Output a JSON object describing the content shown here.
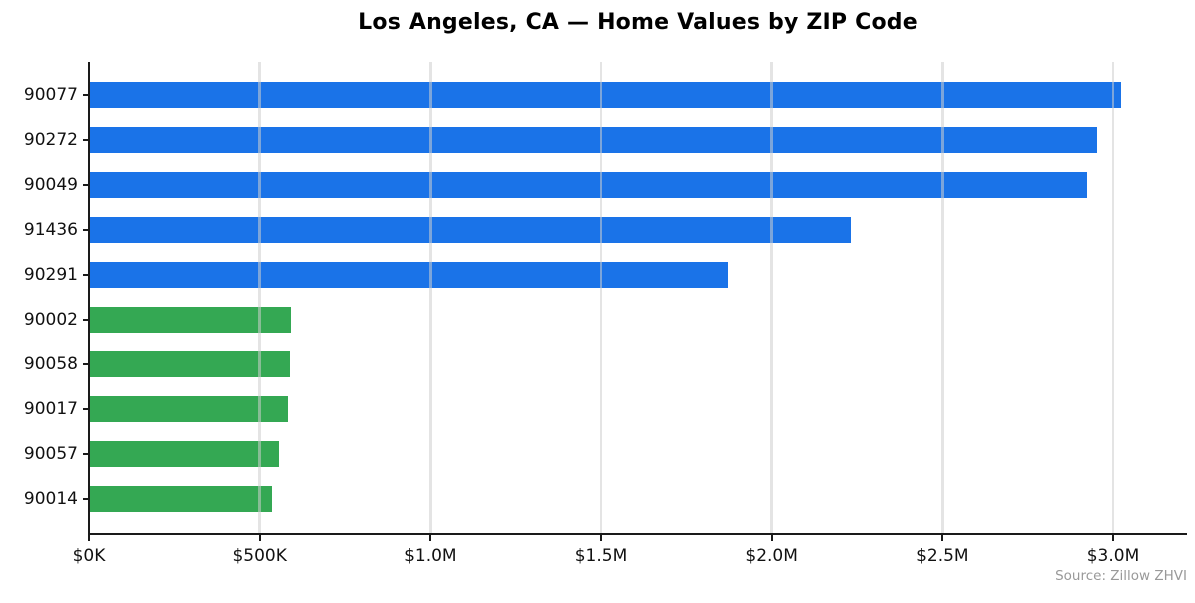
{
  "chart_data": {
    "type": "bar",
    "orientation": "horizontal",
    "title": "Los Angeles, CA — Home Values by ZIP Code",
    "source_note": "Source: Zillow ZHVI",
    "xlabel": "",
    "ylabel": "",
    "grid": true,
    "legend": "none",
    "xlim": [
      0,
      3220000
    ],
    "categories": [
      "90077",
      "90272",
      "90049",
      "91436",
      "90291",
      "90002",
      "90058",
      "90017",
      "90057",
      "90014"
    ],
    "values": [
      3020000,
      2950000,
      2920000,
      2230000,
      1870000,
      590000,
      586000,
      580000,
      553000,
      533000
    ],
    "bars": [
      {
        "label": "90077",
        "value": 3020000,
        "color": "#1a73e8",
        "group": "top-5-most-expensive"
      },
      {
        "label": "90272",
        "value": 2950000,
        "color": "#1a73e8",
        "group": "top-5-most-expensive"
      },
      {
        "label": "90049",
        "value": 2920000,
        "color": "#1a73e8",
        "group": "top-5-most-expensive"
      },
      {
        "label": "91436",
        "value": 2230000,
        "color": "#1a73e8",
        "group": "top-5-most-expensive"
      },
      {
        "label": "90291",
        "value": 1870000,
        "color": "#1a73e8",
        "group": "top-5-most-expensive"
      },
      {
        "label": "90002",
        "value": 590000,
        "color": "#34a853",
        "group": "bottom-5-least-expensive"
      },
      {
        "label": "90058",
        "value": 586000,
        "color": "#34a853",
        "group": "bottom-5-least-expensive"
      },
      {
        "label": "90017",
        "value": 580000,
        "color": "#34a853",
        "group": "bottom-5-least-expensive"
      },
      {
        "label": "90057",
        "value": 553000,
        "color": "#34a853",
        "group": "bottom-5-least-expensive"
      },
      {
        "label": "90014",
        "value": 533000,
        "color": "#34a853",
        "group": "bottom-5-least-expensive"
      }
    ],
    "x_ticks": [
      {
        "value": 0,
        "label": "$0K"
      },
      {
        "value": 500000,
        "label": "$500K"
      },
      {
        "value": 1000000,
        "label": "$1.0M"
      },
      {
        "value": 1500000,
        "label": "$1.5M"
      },
      {
        "value": 2000000,
        "label": "$2.0M"
      },
      {
        "value": 2500000,
        "label": "$2.5M"
      },
      {
        "value": 3000000,
        "label": "$3.0M"
      }
    ],
    "colors": {
      "top_bars": "#1a73e8",
      "bottom_bars": "#34a853",
      "axis": "#1a1a1a",
      "grid": "#dcdcdc",
      "tick_label": "#111111",
      "source_text": "#999999"
    }
  }
}
